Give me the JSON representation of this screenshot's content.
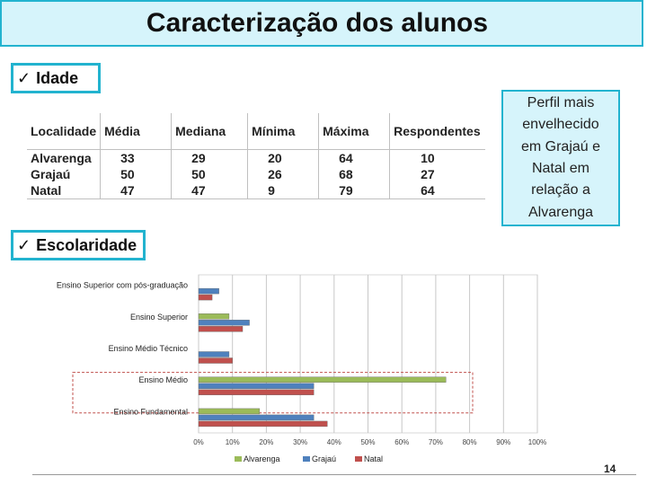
{
  "title": "Caracterização dos alunos",
  "sections": {
    "idade": "Idade",
    "escolaridade": "Escolaridade"
  },
  "check_glyph": "ü",
  "age_table": {
    "headers": [
      "Localidade",
      "Média",
      "Mediana",
      "Mínima",
      "Máxima",
      "Respondentes"
    ],
    "rows": [
      [
        "Alvarenga",
        "33",
        "29",
        "20",
        "64",
        "10"
      ],
      [
        "Grajaú",
        "50",
        "50",
        "26",
        "68",
        "27"
      ],
      [
        "Natal",
        "47",
        "47",
        "9",
        "79",
        "64"
      ]
    ]
  },
  "note_lines": [
    "Perfil mais",
    "envelhecido",
    "em Grajaú e",
    "Natal em",
    "relação a",
    "Alvarenga"
  ],
  "chart_data": {
    "type": "bar",
    "orientation": "horizontal",
    "categories": [
      "Ensino Superior com pós-graduação",
      "Ensino Superior",
      "Ensino Médio Técnico",
      "Ensino Médio",
      "Ensino Fundamental"
    ],
    "series": [
      {
        "name": "Alvarenga",
        "color": "#9bbb59",
        "values": [
          0,
          9,
          0,
          73,
          18
        ]
      },
      {
        "name": "Grajaú",
        "color": "#4f81bd",
        "values": [
          6,
          15,
          9,
          34,
          34
        ]
      },
      {
        "name": "Natal",
        "color": "#c0504d",
        "values": [
          4,
          13,
          10,
          34,
          38
        ]
      }
    ],
    "xlim": [
      0,
      100
    ],
    "xticks": [
      "0%",
      "10%",
      "20%",
      "30%",
      "40%",
      "50%",
      "60%",
      "70%",
      "80%",
      "90%",
      "100%"
    ],
    "grid": true,
    "legend": "bottom",
    "highlight_category": "Ensino Médio"
  },
  "page_number": "14"
}
